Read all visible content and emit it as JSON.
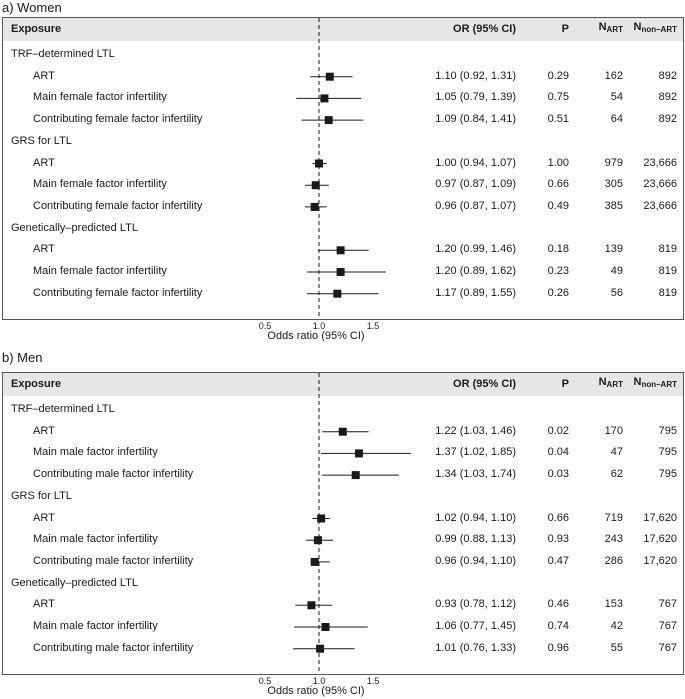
{
  "headers": {
    "exposure": "Exposure",
    "or": "OR (95% CI)",
    "p": "P",
    "n_art_main": "N",
    "n_art_sub": "ART",
    "n_non_main": "N",
    "n_non_sub": "non–ART"
  },
  "axis": {
    "title": "Odds ratio (95% CI)",
    "ticks": [
      "0.5",
      "1.0",
      "1.5"
    ]
  },
  "chart_data": [
    {
      "type": "forest",
      "title": "a) Women",
      "xlabel": "Odds ratio (95% CI)",
      "xlim": [
        0.5,
        1.5
      ],
      "reference_line": 1.0,
      "groups": [
        {
          "name": "TRF–determined LTL",
          "rows": [
            {
              "label": "ART",
              "or_text": "1.10 (0.92, 1.31)",
              "or": 1.1,
              "lo": 0.92,
              "hi": 1.31,
              "p": "0.29",
              "n_art": "162",
              "n_non_art": "892"
            },
            {
              "label": "Main female factor infertility",
              "or_text": "1.05 (0.79, 1.39)",
              "or": 1.05,
              "lo": 0.79,
              "hi": 1.39,
              "p": "0.75",
              "n_art": "54",
              "n_non_art": "892"
            },
            {
              "label": "Contributing female factor infertility",
              "or_text": "1.09 (0.84, 1.41)",
              "or": 1.09,
              "lo": 0.84,
              "hi": 1.41,
              "p": "0.51",
              "n_art": "64",
              "n_non_art": "892"
            }
          ]
        },
        {
          "name": "GRS for LTL",
          "rows": [
            {
              "label": "ART",
              "or_text": "1.00 (0.94, 1.07)",
              "or": 1.0,
              "lo": 0.94,
              "hi": 1.07,
              "p": "1.00",
              "n_art": "979",
              "n_non_art": "23,666"
            },
            {
              "label": "Main female factor infertility",
              "or_text": "0.97 (0.87, 1.09)",
              "or": 0.97,
              "lo": 0.87,
              "hi": 1.09,
              "p": "0.66",
              "n_art": "305",
              "n_non_art": "23,666"
            },
            {
              "label": "Contributing female factor infertility",
              "or_text": "0.96 (0.87, 1.07)",
              "or": 0.96,
              "lo": 0.87,
              "hi": 1.07,
              "p": "0.49",
              "n_art": "385",
              "n_non_art": "23,666"
            }
          ]
        },
        {
          "name": "Genetically–predicted LTL",
          "rows": [
            {
              "label": "ART",
              "or_text": "1.20 (0.99, 1.46)",
              "or": 1.2,
              "lo": 0.99,
              "hi": 1.46,
              "p": "0.18",
              "n_art": "139",
              "n_non_art": "819"
            },
            {
              "label": "Main female factor infertility",
              "or_text": "1.20 (0.89, 1.62)",
              "or": 1.2,
              "lo": 0.89,
              "hi": 1.62,
              "p": "0.23",
              "n_art": "49",
              "n_non_art": "819"
            },
            {
              "label": "Contributing female factor infertility",
              "or_text": "1.17 (0.89, 1.55)",
              "or": 1.17,
              "lo": 0.89,
              "hi": 1.55,
              "p": "0.26",
              "n_art": "56",
              "n_non_art": "819"
            }
          ]
        }
      ]
    },
    {
      "type": "forest",
      "title": "b) Men",
      "xlabel": "Odds ratio (95% CI)",
      "xlim": [
        0.5,
        1.5
      ],
      "reference_line": 1.0,
      "groups": [
        {
          "name": "TRF–determined LTL",
          "rows": [
            {
              "label": "ART",
              "or_text": "1.22 (1.03, 1.46)",
              "or": 1.22,
              "lo": 1.03,
              "hi": 1.46,
              "p": "0.02",
              "n_art": "170",
              "n_non_art": "795"
            },
            {
              "label": "Main male factor infertility",
              "or_text": "1.37 (1.02, 1.85)",
              "or": 1.37,
              "lo": 1.02,
              "hi": 1.85,
              "p": "0.04",
              "n_art": "47",
              "n_non_art": "795"
            },
            {
              "label": "Contributing male factor infertility",
              "or_text": "1.34 (1.03, 1.74)",
              "or": 1.34,
              "lo": 1.03,
              "hi": 1.74,
              "p": "0.03",
              "n_art": "62",
              "n_non_art": "795"
            }
          ]
        },
        {
          "name": "GRS for LTL",
          "rows": [
            {
              "label": "ART",
              "or_text": "1.02 (0.94, 1.10)",
              "or": 1.02,
              "lo": 0.94,
              "hi": 1.1,
              "p": "0.66",
              "n_art": "719",
              "n_non_art": "17,620"
            },
            {
              "label": "Main male factor infertility",
              "or_text": "0.99 (0.88, 1.13)",
              "or": 0.99,
              "lo": 0.88,
              "hi": 1.13,
              "p": "0.93",
              "n_art": "243",
              "n_non_art": "17,620"
            },
            {
              "label": "Contributing male factor infertility",
              "or_text": "0.96 (0.94, 1.10)",
              "or": 0.96,
              "lo": 0.94,
              "hi": 1.1,
              "p": "0.47",
              "n_art": "286",
              "n_non_art": "17,620"
            }
          ]
        },
        {
          "name": "Genetically–predicted LTL",
          "rows": [
            {
              "label": "ART",
              "or_text": "0.93 (0.78, 1.12)",
              "or": 0.93,
              "lo": 0.78,
              "hi": 1.12,
              "p": "0.46",
              "n_art": "153",
              "n_non_art": "767"
            },
            {
              "label": "Main male factor infertility",
              "or_text": "1.06 (0.77, 1.45)",
              "or": 1.06,
              "lo": 0.77,
              "hi": 1.45,
              "p": "0.74",
              "n_art": "42",
              "n_non_art": "767"
            },
            {
              "label": "Contributing male factor infertility",
              "or_text": "1.01 (0.76, 1.33)",
              "or": 1.01,
              "lo": 0.76,
              "hi": 1.33,
              "p": "0.96",
              "n_art": "55",
              "n_non_art": "767"
            }
          ]
        }
      ]
    }
  ]
}
